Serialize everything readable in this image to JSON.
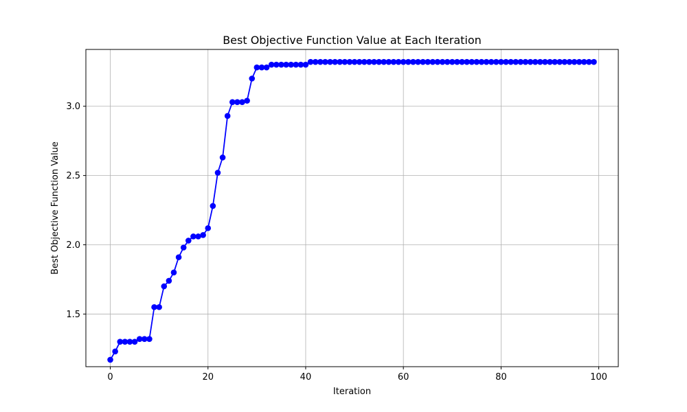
{
  "chart_data": {
    "type": "line",
    "title": "Best Objective Function Value at Each Iteration",
    "xlabel": "Iteration",
    "ylabel": "Best Objective Function Value",
    "xlim": [
      -5,
      104
    ],
    "ylim": [
      1.12,
      3.41
    ],
    "grid": true,
    "marker": "circle",
    "x_ticks": [
      0,
      20,
      40,
      60,
      80,
      100
    ],
    "x_tick_labels": [
      "0",
      "20",
      "40",
      "60",
      "80",
      "100"
    ],
    "y_ticks": [
      1.5,
      2.0,
      2.5,
      3.0
    ],
    "y_tick_labels": [
      "1.5",
      "2.0",
      "2.5",
      "3.0"
    ],
    "colors": {
      "series": "#0000ff",
      "grid": "#b0b0b0"
    },
    "series": [
      {
        "x": [
          0,
          1,
          2,
          3,
          4,
          5,
          6,
          7,
          8,
          9,
          10,
          11,
          12,
          13,
          14,
          15,
          16,
          17,
          18,
          19,
          20,
          21,
          22,
          23,
          24,
          25,
          26,
          27,
          28,
          29,
          30,
          31,
          32,
          33,
          34,
          35,
          36,
          37,
          38,
          39,
          40,
          41,
          42,
          43,
          44,
          45,
          46,
          47,
          48,
          49,
          50,
          51,
          52,
          53,
          54,
          55,
          56,
          57,
          58,
          59,
          60,
          61,
          62,
          63,
          64,
          65,
          66,
          67,
          68,
          69,
          70,
          71,
          72,
          73,
          74,
          75,
          76,
          77,
          78,
          79,
          80,
          81,
          82,
          83,
          84,
          85,
          86,
          87,
          88,
          89,
          90,
          91,
          92,
          93,
          94,
          95,
          96,
          97,
          98,
          99
        ],
        "values": [
          1.17,
          1.23,
          1.3,
          1.3,
          1.3,
          1.3,
          1.32,
          1.32,
          1.32,
          1.55,
          1.55,
          1.7,
          1.74,
          1.8,
          1.91,
          1.98,
          2.03,
          2.06,
          2.06,
          2.07,
          2.12,
          2.28,
          2.52,
          2.63,
          2.93,
          3.03,
          3.03,
          3.03,
          3.04,
          3.2,
          3.28,
          3.28,
          3.28,
          3.3,
          3.3,
          3.3,
          3.3,
          3.3,
          3.3,
          3.3,
          3.3,
          3.32,
          3.32,
          3.32,
          3.32,
          3.32,
          3.32,
          3.32,
          3.32,
          3.32,
          3.32,
          3.32,
          3.32,
          3.32,
          3.32,
          3.32,
          3.32,
          3.32,
          3.32,
          3.32,
          3.32,
          3.32,
          3.32,
          3.32,
          3.32,
          3.32,
          3.32,
          3.32,
          3.32,
          3.32,
          3.32,
          3.32,
          3.32,
          3.32,
          3.32,
          3.32,
          3.32,
          3.32,
          3.32,
          3.32,
          3.32,
          3.32,
          3.32,
          3.32,
          3.32,
          3.32,
          3.32,
          3.32,
          3.32,
          3.32,
          3.32,
          3.32,
          3.32,
          3.32,
          3.32,
          3.32,
          3.32,
          3.32,
          3.32,
          3.32
        ]
      }
    ]
  }
}
